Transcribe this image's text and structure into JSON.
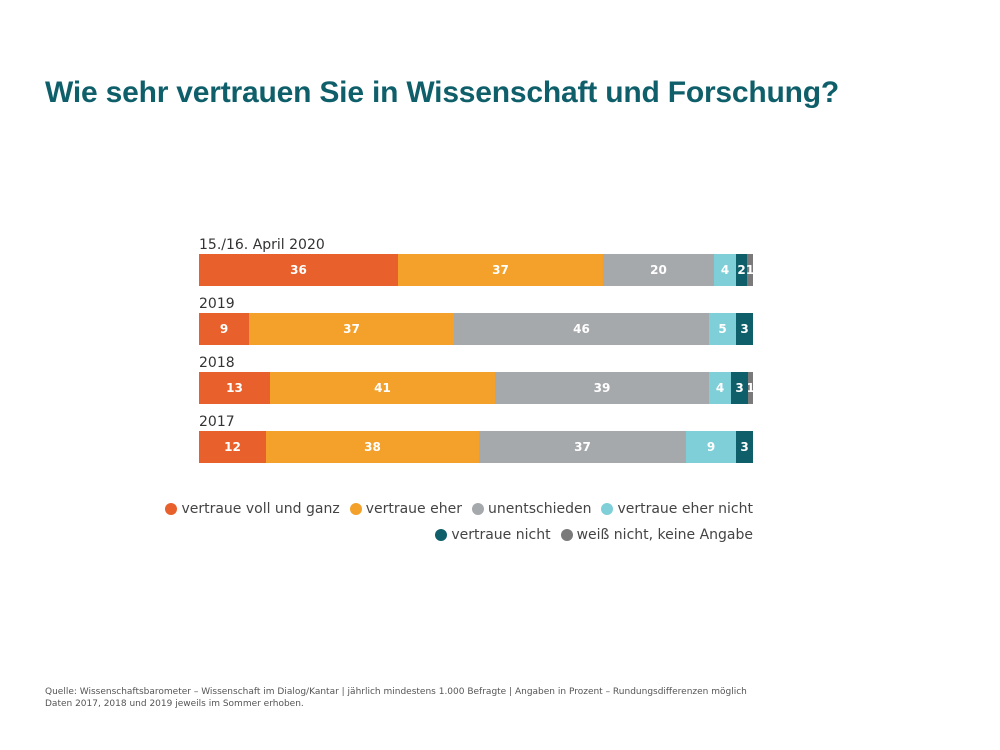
{
  "title": "Wie sehr vertrauen Sie in Wissenschaft und Forschung?",
  "footer": {
    "line1": "Quelle: Wissenschaftsbarometer – Wissenschaft im Dialog/Kantar | jährlich mindestens 1.000 Befragte | Angaben in Prozent – Rundungsdifferenzen möglich",
    "line2": "Daten 2017, 2018 und 2019 jeweils im Sommer erhoben."
  },
  "chart_data": {
    "type": "bar",
    "orientation": "horizontal",
    "stacked": true,
    "xlim": [
      0,
      100
    ],
    "grid": false,
    "legend_position": "bottom-right",
    "categories": [
      "15./16. April 2020",
      "2019",
      "2018",
      "2017"
    ],
    "series": [
      {
        "name": "vertraue voll und ganz",
        "color": "#e8602c",
        "values": [
          36,
          9,
          13,
          12
        ],
        "labels": [
          "36",
          "9",
          "13",
          "12"
        ]
      },
      {
        "name": "vertraue eher",
        "color": "#f3a12a",
        "values": [
          37,
          37,
          41,
          38
        ],
        "labels": [
          "37",
          "37",
          "41",
          "38"
        ]
      },
      {
        "name": "unentschieden",
        "color": "#a6a9ac",
        "values": [
          20,
          46,
          39,
          37
        ],
        "labels": [
          "20",
          "46",
          "39",
          "37"
        ]
      },
      {
        "name": "vertraue eher nicht",
        "color": "#7ecfd8",
        "values": [
          4,
          5,
          4,
          9
        ],
        "labels": [
          "4",
          "5",
          "4",
          "9"
        ]
      },
      {
        "name": "vertraue nicht",
        "color": "#0f5f6b",
        "values": [
          2,
          3,
          3,
          3
        ],
        "labels": [
          "2",
          "3",
          "3",
          "3"
        ]
      },
      {
        "name": "weiß nicht, keine Angabe",
        "color": "#7a7a7a",
        "values": [
          1,
          0,
          1,
          0
        ],
        "labels": [
          "1",
          "",
          "1",
          ""
        ]
      }
    ]
  }
}
